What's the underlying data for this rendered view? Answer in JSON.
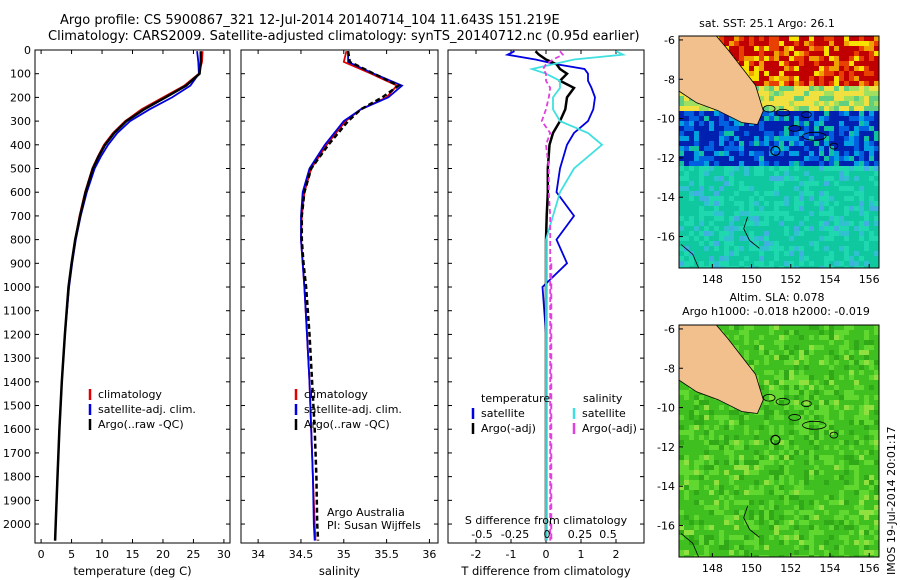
{
  "header": {
    "line1": "Argo profile: CS 5900867_321 12-Jul-2014 20140714_104 11.643S 151.219E",
    "line2": "Climatology: CARS2009. Satellite-adjusted climatology: synTS_20140712.nc (0.95d earlier)"
  },
  "stamp": "IMOS 19-Jul-2014 20:01:17",
  "colors": {
    "clim": "#e00000",
    "sat": "#0000e0",
    "argo": "#000000",
    "sal_sat": "#40e0e0",
    "sal_argo": "#e040e0"
  },
  "chart_data": [
    {
      "type": "line",
      "name": "temperature",
      "xlabel": "temperature (deg C)",
      "ylabel": "",
      "xlim": [
        -1,
        31
      ],
      "ylim": [
        2080,
        0
      ],
      "xticks": [
        0,
        5,
        10,
        15,
        20,
        25,
        30
      ],
      "yticks": [
        0,
        100,
        200,
        300,
        400,
        500,
        600,
        700,
        800,
        900,
        1000,
        1100,
        1200,
        1300,
        1400,
        1500,
        1600,
        1700,
        1800,
        1900,
        2000
      ],
      "legend": [
        "climatology",
        "satellite-adj. clim.",
        "Argo(..raw -QC)"
      ],
      "series": [
        {
          "name": "climatology",
          "color": "#e00000",
          "depth": [
            5,
            50,
            100,
            150,
            200,
            250,
            300,
            350,
            400,
            450,
            500,
            600,
            700,
            800,
            900,
            1000,
            1200,
            1400,
            1600,
            1800,
            2000,
            2070
          ],
          "values": [
            26.5,
            26.4,
            25.9,
            23.5,
            20.0,
            16.5,
            13.8,
            11.8,
            10.3,
            9.3,
            8.4,
            7.2,
            6.3,
            5.6,
            5.0,
            4.5,
            3.9,
            3.4,
            3.0,
            2.7,
            2.4,
            2.3
          ]
        },
        {
          "name": "satellite-adj. clim.",
          "color": "#0000e0",
          "depth": [
            5,
            50,
            100,
            150,
            200,
            250,
            300,
            350,
            400,
            450,
            500,
            600,
            700,
            800,
            900,
            1000,
            1200,
            1400,
            1600,
            1800,
            2000,
            2070
          ],
          "values": [
            25.6,
            25.8,
            25.9,
            24.5,
            21.5,
            17.8,
            14.6,
            12.5,
            11.0,
            9.8,
            8.8,
            7.5,
            6.5,
            5.7,
            5.1,
            4.6,
            3.9,
            3.4,
            3.0,
            2.7,
            2.4,
            2.3
          ]
        },
        {
          "name": "Argo(..raw -QC)",
          "color": "#000000",
          "depth": [
            5,
            50,
            100,
            150,
            200,
            250,
            300,
            350,
            400,
            450,
            500,
            600,
            700,
            800,
            900,
            1000,
            1200,
            1400,
            1600,
            1800,
            2000,
            2070
          ],
          "values": [
            26.2,
            26.2,
            26.0,
            23.8,
            20.4,
            16.9,
            14.0,
            12.0,
            10.5,
            9.4,
            8.5,
            7.3,
            6.4,
            5.6,
            5.0,
            4.5,
            3.9,
            3.4,
            3.0,
            2.7,
            2.4,
            2.3
          ]
        }
      ]
    },
    {
      "type": "line",
      "name": "salinity",
      "xlabel": "salinity",
      "xlim": [
        33.8,
        36.1
      ],
      "ylim": [
        2080,
        0
      ],
      "xticks": [
        34,
        34.5,
        35,
        35.5,
        36
      ],
      "legend": [
        "climatology",
        "satellite-adj. clim.",
        "Argo(..raw -QC)"
      ],
      "annotation": [
        "Argo Australia",
        "PI: Susan Wijffels"
      ],
      "series": [
        {
          "name": "climatology",
          "color": "#e00000",
          "depth": [
            5,
            50,
            100,
            150,
            200,
            250,
            300,
            400,
            500,
            600,
            700,
            800,
            900,
            1000,
            1200,
            1400,
            1600,
            1800,
            2000,
            2070
          ],
          "values": [
            35.03,
            35.0,
            35.32,
            35.62,
            35.5,
            35.2,
            35.02,
            34.8,
            34.62,
            34.54,
            34.51,
            34.5,
            34.52,
            34.54,
            34.57,
            34.6,
            34.62,
            34.64,
            34.66,
            34.67
          ]
        },
        {
          "name": "satellite-adj. clim.",
          "color": "#0000e0",
          "depth": [
            5,
            50,
            100,
            150,
            200,
            250,
            300,
            400,
            500,
            600,
            700,
            800,
            900,
            1000,
            1200,
            1400,
            1600,
            1800,
            2000,
            2070
          ],
          "values": [
            35.05,
            35.05,
            35.35,
            35.68,
            35.52,
            35.2,
            35.0,
            34.78,
            34.6,
            34.52,
            34.5,
            34.5,
            34.52,
            34.54,
            34.57,
            34.6,
            34.62,
            34.64,
            34.65,
            34.66
          ]
        },
        {
          "name": "Argo(..raw -QC)",
          "color": "#000000",
          "depth": [
            5,
            50,
            100,
            150,
            200,
            250,
            300,
            400,
            500,
            600,
            700,
            800,
            900,
            1000,
            1200,
            1400,
            1600,
            1800,
            2000,
            2070
          ],
          "values": [
            35.05,
            35.07,
            35.35,
            35.64,
            35.45,
            35.2,
            35.05,
            34.82,
            34.62,
            34.54,
            34.51,
            34.51,
            34.53,
            34.56,
            34.6,
            34.63,
            34.66,
            34.68,
            34.69,
            34.7
          ]
        }
      ]
    },
    {
      "type": "line",
      "name": "difference",
      "xlabel": "T difference from climatology",
      "xlabel_top": "S difference from climatology",
      "xlim": [
        -2.8,
        2.8
      ],
      "ylim": [
        2080,
        0
      ],
      "xticks": [
        -2,
        -1,
        0,
        1,
        2
      ],
      "xticks_top": [
        "-0.5",
        "-0.25",
        "0",
        "0.25",
        "0.5"
      ],
      "legend_left_title": "temperature",
      "legend_right_title": "salinity",
      "legend": [
        "satellite",
        "Argo(-adj)",
        "satellite",
        "Argo(-adj)"
      ],
      "series": [
        {
          "name": "T satellite",
          "color": "#0000e0",
          "depth": [
            5,
            20,
            40,
            60,
            80,
            100,
            130,
            160,
            200,
            250,
            300,
            350,
            400,
            500,
            600,
            700,
            800,
            900,
            1000,
            1200,
            1400,
            1600,
            1800,
            2000,
            2070
          ],
          "values": [
            -0.9,
            -1.1,
            -0.3,
            0.3,
            1.1,
            1.2,
            1.2,
            1.3,
            1.4,
            1.35,
            1.2,
            0.8,
            0.6,
            0.4,
            0.3,
            0.8,
            0.3,
            0.6,
            -0.1,
            0.0,
            0.0,
            0.0,
            0.0,
            0.0,
            0.0
          ]
        },
        {
          "name": "T Argo(-adj)",
          "color": "#000000",
          "depth": [
            5,
            20,
            40,
            60,
            80,
            100,
            130,
            160,
            200,
            250,
            300,
            350,
            400,
            500,
            600,
            700,
            800,
            900,
            1000,
            1200,
            1400,
            1600,
            1800,
            2000,
            2070
          ],
          "values": [
            -0.3,
            -0.2,
            0.0,
            0.3,
            0.4,
            0.6,
            0.4,
            0.8,
            0.6,
            0.55,
            0.4,
            0.2,
            0.1,
            0.05,
            0.05,
            0.02,
            0.0,
            0.0,
            0.0,
            0.0,
            0.0,
            0.0,
            0.0,
            0.0,
            0.0
          ]
        },
        {
          "name": "S satellite",
          "color": "#40e0e0",
          "depth": [
            5,
            20,
            40,
            60,
            80,
            100,
            130,
            160,
            200,
            250,
            300,
            350,
            400,
            500,
            600,
            700,
            800,
            900,
            1000,
            1200,
            1400,
            1600,
            1800,
            2000,
            2070
          ],
          "values": [
            0.5,
            0.55,
            0.2,
            0.05,
            -0.1,
            0.0,
            0.1,
            0.1,
            0.05,
            0.05,
            0.1,
            0.3,
            0.4,
            0.2,
            0.1,
            0.05,
            0.0,
            0.0,
            0.0,
            0.0,
            0.0,
            0.0,
            0.0,
            0.0,
            0.0
          ]
        },
        {
          "name": "S Argo(-adj)",
          "color": "#e040e0",
          "depth": [
            5,
            20,
            40,
            60,
            80,
            100,
            130,
            160,
            200,
            250,
            300,
            350,
            400,
            500,
            600,
            700,
            800,
            900,
            1000,
            1200,
            1400,
            1600,
            1800,
            2000,
            2070
          ],
          "values": [
            0.1,
            0.12,
            0.05,
            0.0,
            -0.02,
            0.0,
            0.0,
            0.03,
            0.02,
            0.0,
            -0.03,
            0.03,
            0.0,
            0.02,
            0.02,
            0.03,
            0.03,
            0.03,
            0.03,
            0.03,
            0.03,
            0.03,
            0.03,
            0.03,
            0.03
          ]
        }
      ]
    },
    {
      "type": "heatmap",
      "name": "sst-map",
      "title": "sat. SST: 25.1  Argo: 26.1",
      "xlim": [
        146.3,
        156.5
      ],
      "ylim": [
        -17.6,
        -5.8
      ],
      "xticks": [
        148,
        150,
        152,
        154,
        156
      ],
      "yticks": [
        -6,
        -8,
        -10,
        -12,
        -14,
        -16
      ],
      "marker": {
        "lon": 151.219,
        "lat": -11.643
      }
    },
    {
      "type": "heatmap",
      "name": "sla-map",
      "title": "Altim. SLA: 0.078",
      "subtitle": "Argo h1000: -0.018  h2000: -0.019",
      "xlim": [
        146.3,
        156.5
      ],
      "ylim": [
        -17.6,
        -5.8
      ],
      "xticks": [
        148,
        150,
        152,
        154,
        156
      ],
      "yticks": [
        -6,
        -8,
        -10,
        -12,
        -14,
        -16
      ],
      "marker": {
        "lon": 151.219,
        "lat": -11.643
      }
    }
  ]
}
